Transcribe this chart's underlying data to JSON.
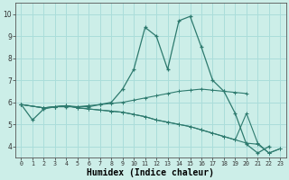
{
  "xlabel": "Humidex (Indice chaleur)",
  "bg_color": "#cceee8",
  "grid_color": "#aaddda",
  "line_color": "#2d7a6e",
  "series": [
    {
      "x": [
        0,
        1,
        2,
        3,
        4,
        5,
        6,
        7,
        8,
        9,
        10,
        11,
        12,
        13,
        14,
        15,
        16,
        17,
        18,
        19,
        20,
        21,
        22
      ],
      "y": [
        5.9,
        5.2,
        5.7,
        5.8,
        5.8,
        5.8,
        5.8,
        5.9,
        6.0,
        6.6,
        7.5,
        9.4,
        9.0,
        7.5,
        9.7,
        9.9,
        8.5,
        7.0,
        6.5,
        5.5,
        4.1,
        3.7,
        4.0
      ]
    },
    {
      "x": [
        0,
        2,
        3,
        4,
        5,
        6,
        7,
        8,
        9,
        10,
        11,
        12,
        13,
        14,
        15,
        16,
        17,
        18,
        19,
        20
      ],
      "y": [
        5.9,
        5.75,
        5.8,
        5.85,
        5.8,
        5.85,
        5.9,
        5.95,
        6.0,
        6.1,
        6.2,
        6.3,
        6.4,
        6.5,
        6.55,
        6.6,
        6.55,
        6.5,
        6.45,
        6.4
      ]
    },
    {
      "x": [
        0,
        2,
        3,
        4,
        5,
        6,
        7,
        8,
        9,
        10,
        11,
        12,
        13,
        14,
        15,
        16,
        17,
        18,
        19,
        20,
        21,
        22,
        23
      ],
      "y": [
        5.9,
        5.75,
        5.8,
        5.85,
        5.75,
        5.7,
        5.65,
        5.6,
        5.55,
        5.45,
        5.35,
        5.2,
        5.1,
        5.0,
        4.9,
        4.75,
        4.6,
        4.45,
        4.3,
        5.5,
        4.15,
        3.7,
        3.9
      ]
    },
    {
      "x": [
        0,
        2,
        3,
        4,
        5,
        6,
        7,
        8,
        9,
        10,
        11,
        12,
        13,
        14,
        15,
        16,
        17,
        18,
        19,
        20,
        21,
        22,
        23
      ],
      "y": [
        5.9,
        5.75,
        5.8,
        5.85,
        5.75,
        5.7,
        5.65,
        5.6,
        5.55,
        5.45,
        5.35,
        5.2,
        5.1,
        5.0,
        4.9,
        4.75,
        4.6,
        4.45,
        4.3,
        4.15,
        4.1,
        3.7,
        3.9
      ]
    }
  ],
  "ylim": [
    3.5,
    10.5
  ],
  "xlim": [
    -0.5,
    23.5
  ],
  "yticks": [
    4,
    5,
    6,
    7,
    8,
    9,
    10
  ],
  "xticks": [
    0,
    1,
    2,
    3,
    4,
    5,
    6,
    7,
    8,
    9,
    10,
    11,
    12,
    13,
    14,
    15,
    16,
    17,
    18,
    19,
    20,
    21,
    22,
    23
  ]
}
